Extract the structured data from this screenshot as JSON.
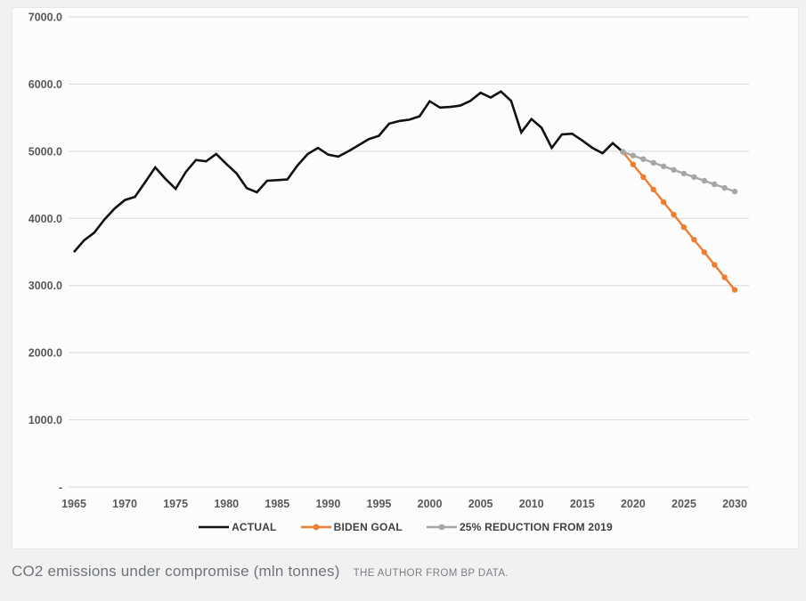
{
  "caption": {
    "title": "CO2 emissions under compromise (mln tonnes)",
    "source": "THE AUTHOR FROM BP DATA."
  },
  "chart_data": {
    "type": "line",
    "title": "CO2 emissions under compromise (mln tonnes)",
    "xlim": [
      1965,
      2030
    ],
    "ylim": [
      0,
      7000
    ],
    "grid": "horizontal-only",
    "legend_position": "bottom",
    "colors": {
      "gridline": "#d9d9d9",
      "axis_labels": "#595959",
      "legend_text": "#404040",
      "actual": "#111111",
      "biden_goal": "#ED7D31",
      "reduction_2019": "#A6A6A6"
    },
    "yticks": {
      "values": [
        7000,
        6000,
        5000,
        4000,
        3000,
        2000,
        1000,
        0
      ],
      "labels": [
        "7000.0",
        "6000.0",
        "5000.0",
        "4000.0",
        "3000.0",
        "2000.0",
        "1000.0",
        "-"
      ]
    },
    "xticks": [
      1965,
      1970,
      1975,
      1980,
      1985,
      1990,
      1995,
      2000,
      2005,
      2010,
      2015,
      2020,
      2025,
      2030
    ],
    "series": [
      {
        "name": "ACTUAL",
        "color": "#111111",
        "marker": false,
        "line_width": 2.6,
        "years": [
          1965,
          1966,
          1967,
          1968,
          1969,
          1970,
          1971,
          1972,
          1973,
          1974,
          1975,
          1976,
          1977,
          1978,
          1979,
          1980,
          1981,
          1982,
          1983,
          1984,
          1985,
          1986,
          1987,
          1988,
          1989,
          1990,
          1991,
          1992,
          1993,
          1994,
          1995,
          1996,
          1997,
          1998,
          1999,
          2000,
          2001,
          2002,
          2003,
          2004,
          2005,
          2006,
          2007,
          2008,
          2009,
          2010,
          2011,
          2012,
          2013,
          2014,
          2015,
          2016,
          2017,
          2018,
          2019
        ],
        "values": [
          3499,
          3674,
          3788,
          3983,
          4147,
          4273,
          4320,
          4538,
          4760,
          4590,
          4440,
          4690,
          4870,
          4850,
          4960,
          4810,
          4670,
          4450,
          4390,
          4560,
          4570,
          4580,
          4790,
          4960,
          5050,
          4950,
          4920,
          5000,
          5090,
          5180,
          5230,
          5410,
          5450,
          5470,
          5520,
          5745,
          5650,
          5660,
          5680,
          5750,
          5870,
          5800,
          5890,
          5750,
          5280,
          5480,
          5350,
          5050,
          5250,
          5260,
          5160,
          5050,
          4970,
          5120,
          4990
        ]
      },
      {
        "name": "BIDEN GOAL",
        "color": "#ED7D31",
        "marker": true,
        "line_width": 2.4,
        "years": [
          2019,
          2020,
          2021,
          2022,
          2023,
          2024,
          2025,
          2026,
          2027,
          2028,
          2029,
          2030
        ],
        "values": [
          4990,
          4803,
          4616,
          4430,
          4243,
          4056,
          3869,
          3683,
          3496,
          3309,
          3122,
          2935
        ]
      },
      {
        "name": "25% REDUCTION FROM 2019",
        "color": "#A6A6A6",
        "marker": true,
        "line_width": 2.4,
        "years": [
          2019,
          2020,
          2021,
          2022,
          2023,
          2024,
          2025,
          2026,
          2027,
          2028,
          2029,
          2030
        ],
        "values": [
          4990,
          4936,
          4883,
          4829,
          4775,
          4722,
          4668,
          4615,
          4561,
          4507,
          4454,
          4400
        ]
      }
    ]
  }
}
